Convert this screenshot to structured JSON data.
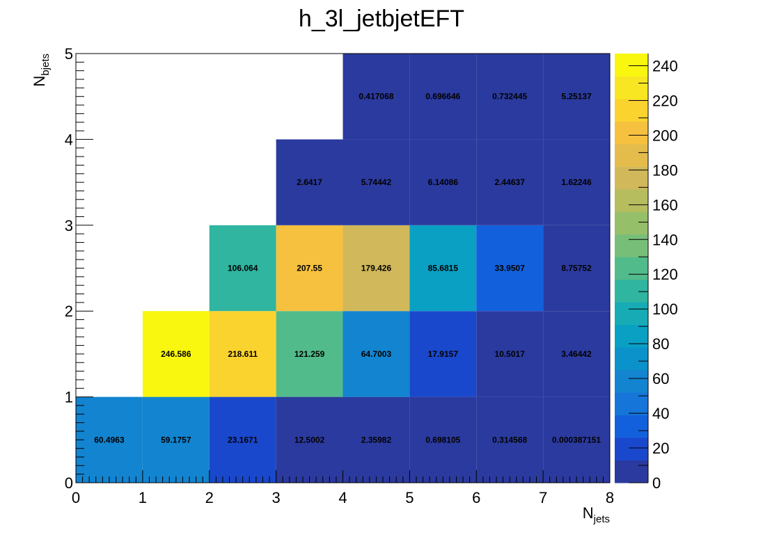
{
  "chart_data": {
    "type": "heatmap",
    "title": "h_3l_jetbjetEFT",
    "xlabel_main": "N",
    "xlabel_sub": "jets",
    "ylabel_main": "N",
    "ylabel_sub": "bjets",
    "xlim": [
      0,
      8
    ],
    "ylim": [
      0,
      5
    ],
    "zlim": [
      0,
      247
    ],
    "x_ticks": [
      "0",
      "1",
      "2",
      "3",
      "4",
      "5",
      "6",
      "7",
      "8"
    ],
    "y_ticks": [
      "0",
      "1",
      "2",
      "3",
      "4",
      "5"
    ],
    "z_ticks": [
      "0",
      "20",
      "40",
      "60",
      "80",
      "100",
      "120",
      "140",
      "160",
      "180",
      "200",
      "220",
      "240"
    ],
    "z_tick_values": [
      0,
      20,
      40,
      60,
      80,
      100,
      120,
      140,
      160,
      180,
      200,
      220,
      240
    ],
    "palette": [
      "#2b3a9e",
      "#1a48cc",
      "#1360dd",
      "#1575d9",
      "#1384d0",
      "#0b92ca",
      "#0aa0c4",
      "#17abb5",
      "#2fb5a0",
      "#52bb8b",
      "#77bf78",
      "#96bf6a",
      "#b5bd5f",
      "#d1b85a",
      "#e4bc4c",
      "#f6c13e",
      "#fbd32f",
      "#f9e623",
      "#f9f70f"
    ],
    "cells": [
      {
        "x": 0,
        "y": 0,
        "value": 60.4963,
        "label": "60.4963"
      },
      {
        "x": 1,
        "y": 0,
        "value": 59.1757,
        "label": "59.1757"
      },
      {
        "x": 2,
        "y": 0,
        "value": 23.1671,
        "label": "23.1671"
      },
      {
        "x": 3,
        "y": 0,
        "value": 12.5002,
        "label": "12.5002"
      },
      {
        "x": 4,
        "y": 0,
        "value": 2.35982,
        "label": "2.35982"
      },
      {
        "x": 5,
        "y": 0,
        "value": 0.698105,
        "label": "0.698105"
      },
      {
        "x": 6,
        "y": 0,
        "value": 0.314568,
        "label": "0.314568"
      },
      {
        "x": 7,
        "y": 0,
        "value": 0.000387151,
        "label": "0.000387151"
      },
      {
        "x": 1,
        "y": 1,
        "value": 246.586,
        "label": "246.586"
      },
      {
        "x": 2,
        "y": 1,
        "value": 218.611,
        "label": "218.611"
      },
      {
        "x": 3,
        "y": 1,
        "value": 121.259,
        "label": "121.259"
      },
      {
        "x": 4,
        "y": 1,
        "value": 64.7003,
        "label": "64.7003"
      },
      {
        "x": 5,
        "y": 1,
        "value": 17.9157,
        "label": "17.9157"
      },
      {
        "x": 6,
        "y": 1,
        "value": 10.5017,
        "label": "10.5017"
      },
      {
        "x": 7,
        "y": 1,
        "value": 3.46442,
        "label": "3.46442"
      },
      {
        "x": 2,
        "y": 2,
        "value": 106.064,
        "label": "106.064"
      },
      {
        "x": 3,
        "y": 2,
        "value": 207.55,
        "label": "207.55"
      },
      {
        "x": 4,
        "y": 2,
        "value": 179.426,
        "label": "179.426"
      },
      {
        "x": 5,
        "y": 2,
        "value": 85.6815,
        "label": "85.6815"
      },
      {
        "x": 6,
        "y": 2,
        "value": 33.9507,
        "label": "33.9507"
      },
      {
        "x": 7,
        "y": 2,
        "value": 8.75752,
        "label": "8.75752"
      },
      {
        "x": 3,
        "y": 3,
        "value": 2.6417,
        "label": "2.6417"
      },
      {
        "x": 4,
        "y": 3,
        "value": 5.74442,
        "label": "5.74442"
      },
      {
        "x": 5,
        "y": 3,
        "value": 6.14086,
        "label": "6.14086"
      },
      {
        "x": 6,
        "y": 3,
        "value": 2.44637,
        "label": "2.44637"
      },
      {
        "x": 7,
        "y": 3,
        "value": 1.62246,
        "label": "1.62246"
      },
      {
        "x": 4,
        "y": 4,
        "value": 0.417068,
        "label": "0.417068"
      },
      {
        "x": 5,
        "y": 4,
        "value": 0.696646,
        "label": "0.696646"
      },
      {
        "x": 6,
        "y": 4,
        "value": 0.732445,
        "label": "0.732445"
      },
      {
        "x": 7,
        "y": 4,
        "value": 5.25137,
        "label": "5.25137"
      }
    ]
  }
}
